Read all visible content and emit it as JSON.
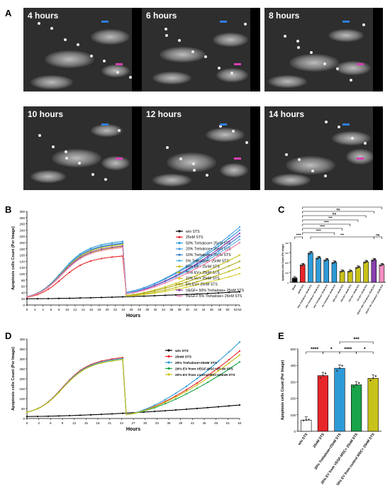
{
  "panels": {
    "a": "A",
    "b": "B",
    "c": "C",
    "d": "D",
    "e": "E"
  },
  "micrographs": [
    {
      "label": "4 hours"
    },
    {
      "label": "6 hours"
    },
    {
      "label": "8 hours"
    },
    {
      "label": "10 hours"
    },
    {
      "label": "12 hours"
    },
    {
      "label": "14 hours"
    }
  ],
  "colors": {
    "blue_arrow": "#2f7de1",
    "pink_arrow": "#d63fb4"
  },
  "chart_data": [
    {
      "id": "B",
      "type": "line",
      "xlabel": "Hours",
      "ylabel": "Apoptosis cells Count (Per Image)",
      "xlim": [
        0,
        53
      ],
      "ylim": [
        0,
        300
      ],
      "yticks": [
        0,
        20,
        40,
        60,
        80,
        100,
        120,
        140,
        160,
        180,
        200,
        220,
        240,
        260,
        280,
        300
      ],
      "xticks": [
        0,
        2,
        4,
        6,
        8,
        10,
        12,
        14,
        16,
        18,
        20,
        22,
        24,
        26,
        28,
        30,
        32,
        34,
        36,
        38,
        40,
        42,
        44,
        46,
        48,
        50,
        52,
        53
      ],
      "legend_position": "right",
      "series": [
        {
          "name": "w/o STS",
          "color": "#000000",
          "kind": "flat",
          "start": 20,
          "end": 42
        },
        {
          "name": "25nM STS",
          "color": "#e8252a",
          "kind": "drop",
          "peak": 158,
          "after_start": 35,
          "after_end": 200
        },
        {
          "name": "50% Trehalose+ 25nM STS",
          "color": "#2d9bd8",
          "kind": "drop",
          "peak": 205,
          "after_start": 40,
          "after_end": 240
        },
        {
          "name": "20% Trehalose+ 25nM STS",
          "color": "#4a9fe0",
          "kind": "drop",
          "peak": 200,
          "after_start": 40,
          "after_end": 250
        },
        {
          "name": "10% Trehalose+ 25nM STS",
          "color": "#3b7fcf",
          "kind": "drop",
          "peak": 198,
          "after_start": 38,
          "after_end": 220
        },
        {
          "name": "5% Trehalose+ 25nM STS",
          "color": "#5ab4e6",
          "kind": "drop",
          "peak": 195,
          "after_start": 38,
          "after_end": 210
        },
        {
          "name": "50% EV+ 25nM STS",
          "color": "#c9c21a",
          "kind": "drop",
          "peak": 195,
          "after_start": 30,
          "after_end": 160
        },
        {
          "name": "20% EV+ 25nM STS",
          "color": "#b9b716",
          "kind": "drop",
          "peak": 190,
          "after_start": 28,
          "after_end": 120
        },
        {
          "name": "10% EV+ 25nM STS",
          "color": "#d6cf2b",
          "kind": "drop",
          "peak": 188,
          "after_start": 28,
          "after_end": 100
        },
        {
          "name": "5% EV+ 25nM STS",
          "color": "#a9a81a",
          "kind": "drop",
          "peak": 185,
          "after_start": 30,
          "after_end": 140
        },
        {
          "name": "VEGF+ 50% Trehalose+ 25nM STS",
          "color": "#8a3fb0",
          "kind": "drop",
          "peak": 190,
          "after_start": 35,
          "after_end": 230
        },
        {
          "name": "VEGF+ 5% Trehalose+ 25nM STS",
          "color": "#f28fc0",
          "kind": "drop",
          "peak": 185,
          "after_start": 35,
          "after_end": 200
        }
      ]
    },
    {
      "id": "C",
      "type": "bar",
      "ylabel": "Apoptosis cells Count (Per Image)",
      "ylim": [
        0,
        400
      ],
      "categories": [
        "Blank",
        "25nM STS",
        "50% Trehalose+ 25nM STS",
        "20% Trehalose+ 25nM STS",
        "10% Trehalose+ 25nM STS",
        "5% Trehalose+ 25nM STS",
        "50% EV+ 25nM STS",
        "20% EV+ 25nM STS",
        "10% EV+ 25nM STS",
        "5% EV+ 25nM STS",
        "VEGF+ 50% Trehalose+ 25nM STS",
        "VEGF+ 5% Trehalose+ 25nM STS"
      ],
      "values": [
        42,
        175,
        295,
        245,
        225,
        200,
        110,
        110,
        150,
        205,
        225,
        175
      ],
      "colors": [
        "#000000",
        "#e8252a",
        "#2d9bd8",
        "#2d9bd8",
        "#2d9bd8",
        "#2d9bd8",
        "#c9c21a",
        "#c9c21a",
        "#c9c21a",
        "#c9c21a",
        "#8a3fb0",
        "#f28fc0"
      ],
      "significance": [
        "****",
        "****",
        "****",
        "****",
        "***",
        "ns",
        "ns",
        "****",
        "***",
        "ns"
      ]
    },
    {
      "id": "D",
      "type": "line",
      "xlabel": "Hours",
      "ylabel": "Apoptosis cells Count (Per Image)",
      "xlim": [
        0,
        54
      ],
      "ylim": [
        0,
        400
      ],
      "yticks": [
        0,
        50,
        100,
        150,
        200,
        250,
        300,
        350,
        400
      ],
      "xticks": [
        0,
        3,
        6,
        9,
        12,
        15,
        18,
        21,
        24,
        27,
        30,
        33,
        36,
        39,
        42,
        45,
        48,
        51,
        54
      ],
      "legend_position": "top-right",
      "series": [
        {
          "name": "w/o STS",
          "color": "#000000",
          "kind": "flat",
          "start": 10,
          "end": 68
        },
        {
          "name": "25nM STS",
          "color": "#e8252a",
          "kind": "drop",
          "peak": 310,
          "after_start": 20,
          "after_end": 340
        },
        {
          "name": "20% Trehalose+25nM STS",
          "color": "#2d9bd8",
          "kind": "drop",
          "peak": 305,
          "after_start": 20,
          "after_end": 385
        },
        {
          "name": "20% EV from VEGF-MSC+25nM STS",
          "color": "#19a34a",
          "kind": "drop",
          "peak": 300,
          "after_start": 20,
          "after_end": 285
        },
        {
          "name": "20% EV from control MSC+25nM STS",
          "color": "#c9c21a",
          "kind": "drop",
          "peak": 300,
          "after_start": 20,
          "after_end": 320
        }
      ]
    },
    {
      "id": "E",
      "type": "bar",
      "ylabel": "Apoptosis cells Count (Per Image)",
      "ylim": [
        0,
        500
      ],
      "yticks": [
        0,
        100,
        200,
        300,
        400,
        500
      ],
      "categories": [
        "w/o STS",
        "25nM STS",
        "20% Trehalose+25nM STS",
        "20% EV from VEGF-MSC+ 25nM STS",
        "20% EV from control MSC+ 25nM STS"
      ],
      "values": [
        68,
        338,
        383,
        282,
        322
      ],
      "colors": [
        "#ffffff",
        "#e8252a",
        "#2d9bd8",
        "#19a34a",
        "#c9c21a"
      ],
      "significance": [
        "****",
        "*",
        "****",
        "*",
        "***"
      ]
    }
  ]
}
